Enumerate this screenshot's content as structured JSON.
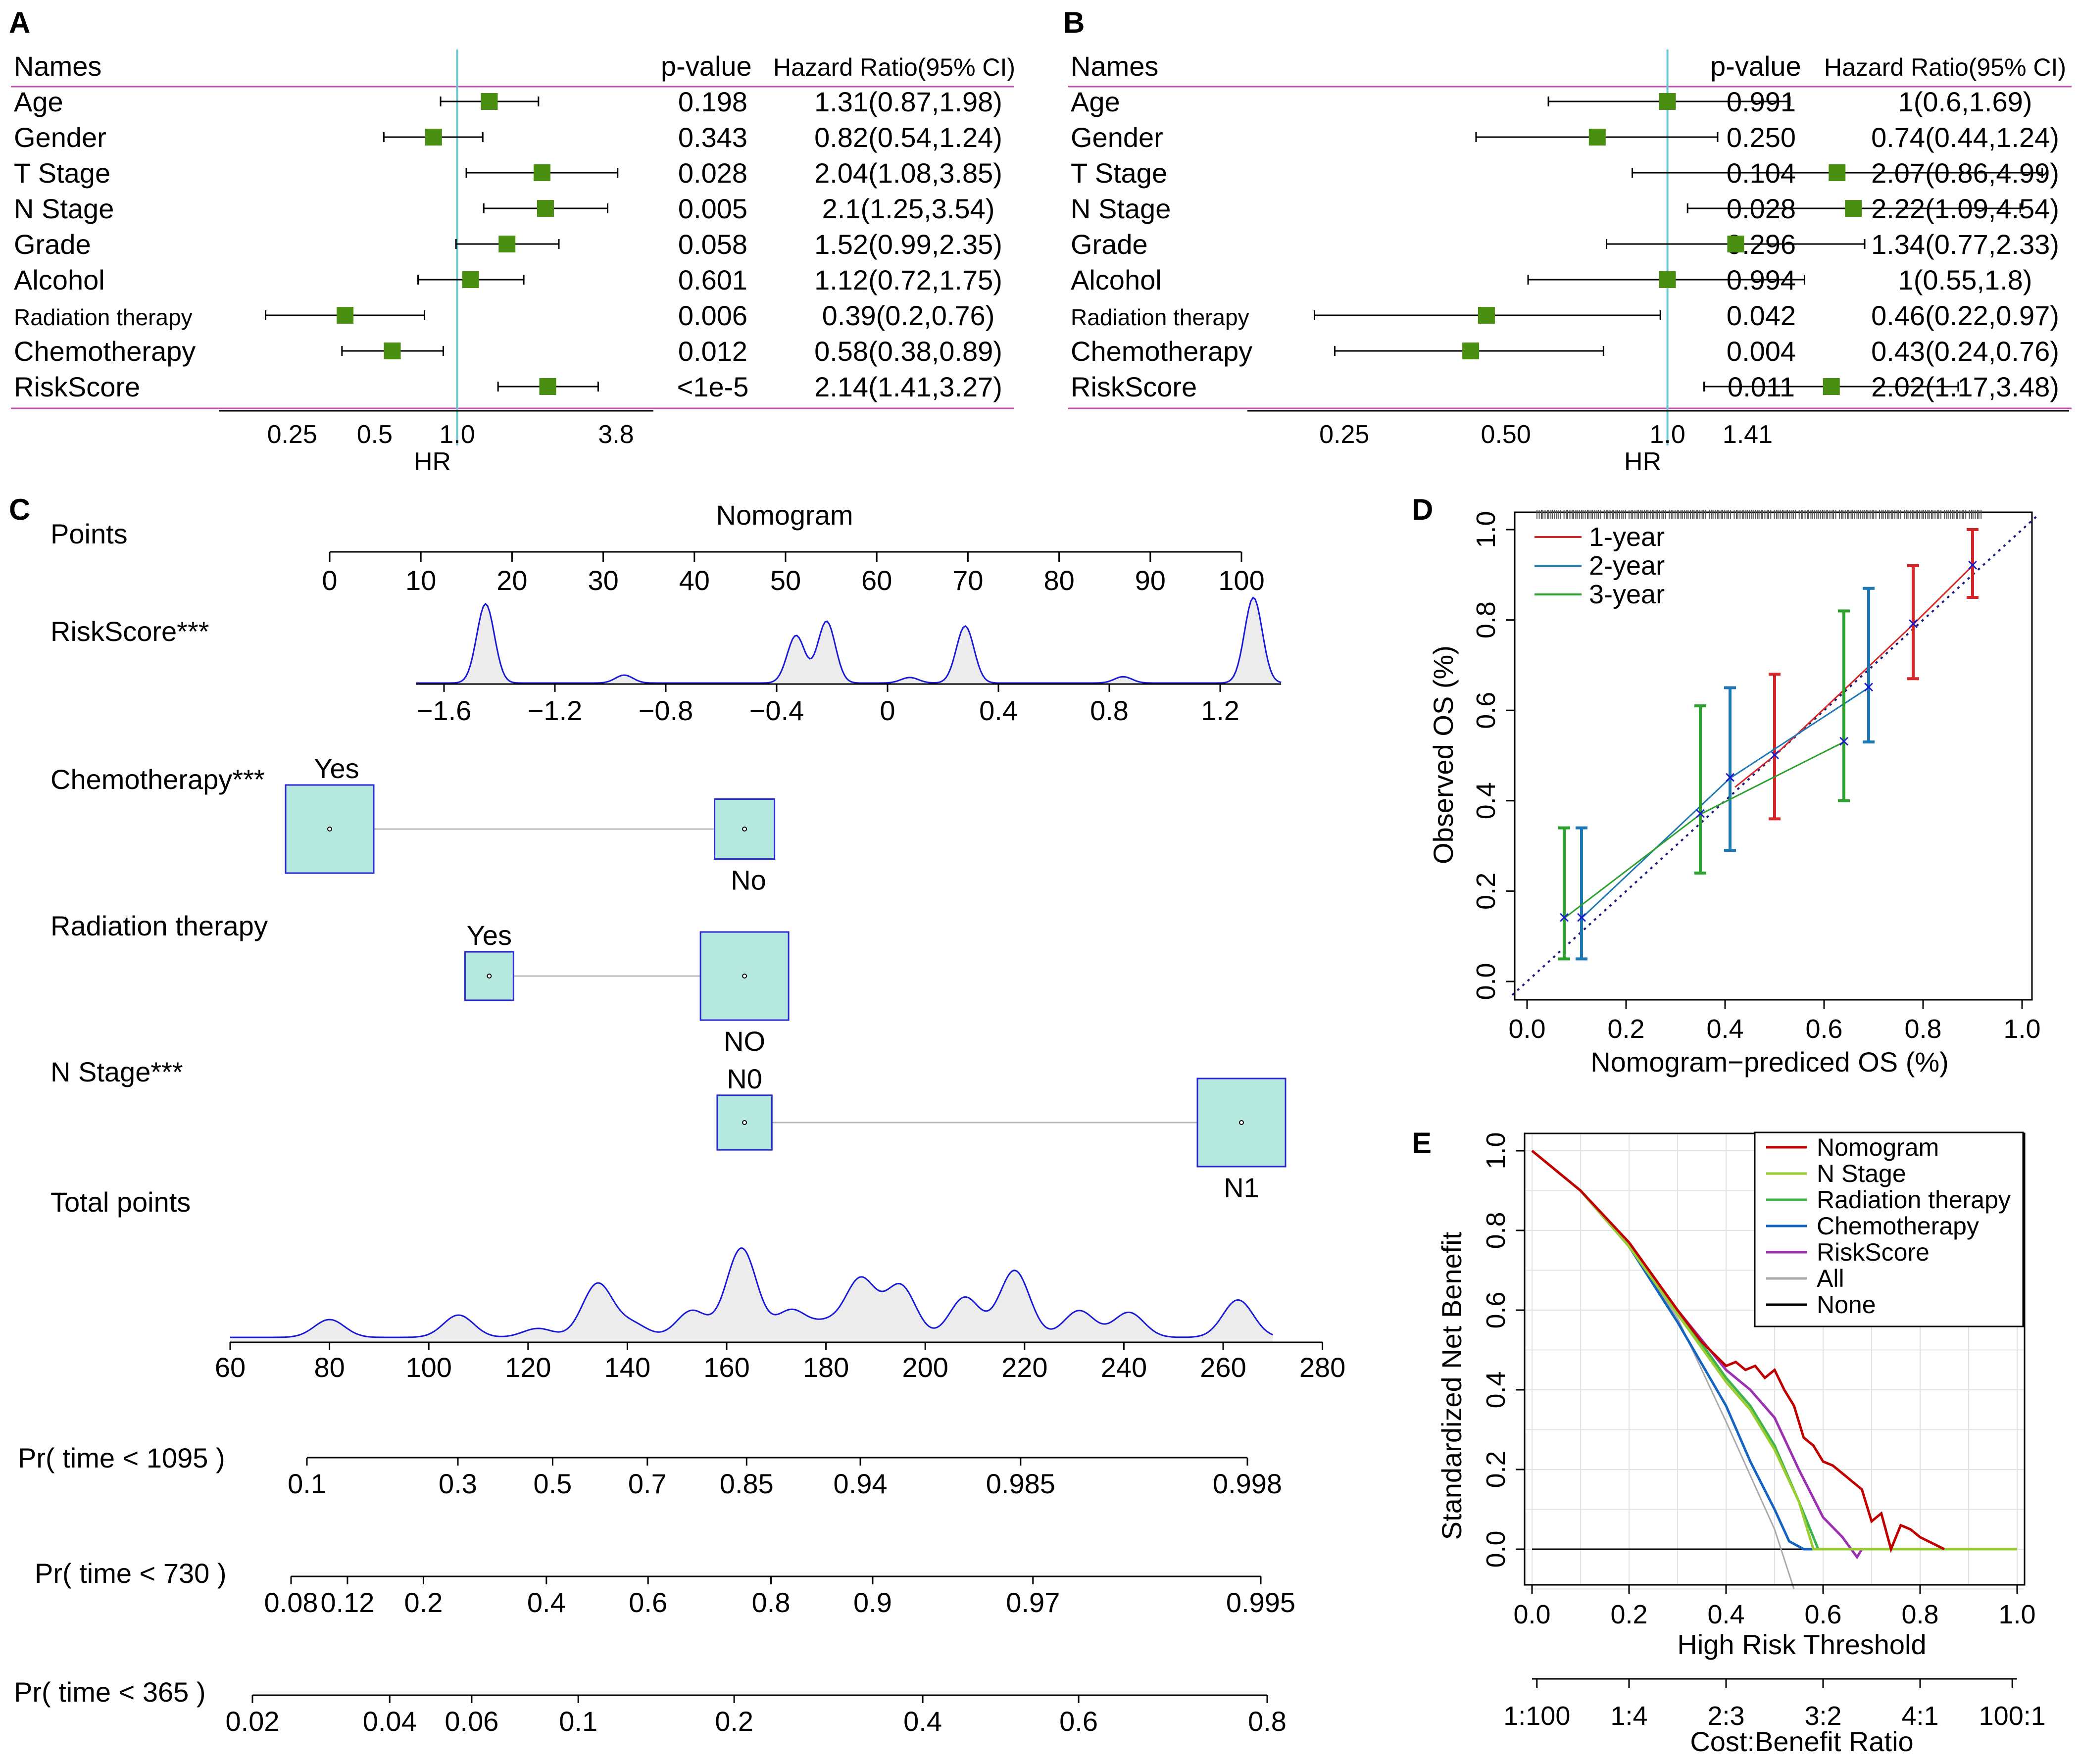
{
  "chart_data": [
    {
      "panel": "A",
      "type": "forest",
      "headers": {
        "names": "Names",
        "p": "p-value",
        "hr": "Hazard Ratio(95% CI)"
      },
      "rows": [
        {
          "name": "Age",
          "p": "0.198",
          "hr_text": "1.31(0.87,1.98)",
          "hr": 1.31,
          "lo": 0.87,
          "hi": 1.98
        },
        {
          "name": "Gender",
          "p": "0.343",
          "hr_text": "0.82(0.54,1.24)",
          "hr": 0.82,
          "lo": 0.54,
          "hi": 1.24
        },
        {
          "name": "T Stage",
          "p": "0.028",
          "hr_text": "2.04(1.08,3.85)",
          "hr": 2.04,
          "lo": 1.08,
          "hi": 3.85
        },
        {
          "name": "N Stage",
          "p": "0.005",
          "hr_text": "2.1(1.25,3.54)",
          "hr": 2.1,
          "lo": 1.25,
          "hi": 3.54
        },
        {
          "name": "Grade",
          "p": "0.058",
          "hr_text": "1.52(0.99,2.35)",
          "hr": 1.52,
          "lo": 0.99,
          "hi": 2.35
        },
        {
          "name": "Alcohol",
          "p": "0.601",
          "hr_text": "1.12(0.72,1.75)",
          "hr": 1.12,
          "lo": 0.72,
          "hi": 1.75
        },
        {
          "name": "Radiation therapy",
          "p": "0.006",
          "hr_text": "0.39(0.2,0.76)",
          "hr": 0.39,
          "lo": 0.2,
          "hi": 0.76
        },
        {
          "name": "Chemotherapy",
          "p": "0.012",
          "hr_text": "0.58(0.38,0.89)",
          "hr": 0.58,
          "lo": 0.38,
          "hi": 0.89
        },
        {
          "name": "RiskScore",
          "p": "<1e-5",
          "hr_text": "2.14(1.41,3.27)",
          "hr": 2.14,
          "lo": 1.41,
          "hi": 3.27
        }
      ],
      "xticks": [
        {
          "label": "0.25",
          "v": 0.25
        },
        {
          "label": "0.5",
          "v": 0.5
        },
        {
          "label": "1.0",
          "v": 1.0
        },
        {
          "label": "3.8",
          "v": 3.8
        }
      ],
      "xrange": [
        0.135,
        5.2
      ],
      "xlabel": "HR"
    },
    {
      "panel": "B",
      "type": "forest",
      "headers": {
        "names": "Names",
        "p": "p-value",
        "hr": "Hazard Ratio(95% CI)"
      },
      "rows": [
        {
          "name": "Age",
          "p": "0.991",
          "hr_text": "1(0.6,1.69)",
          "hr": 1.0,
          "lo": 0.6,
          "hi": 1.69
        },
        {
          "name": "Gender",
          "p": "0.250",
          "hr_text": "0.74(0.44,1.24)",
          "hr": 0.74,
          "lo": 0.44,
          "hi": 1.24
        },
        {
          "name": "T Stage",
          "p": "0.104",
          "hr_text": "2.07(0.86,4.99)",
          "hr": 2.07,
          "lo": 0.86,
          "hi": 4.99
        },
        {
          "name": "N Stage",
          "p": "0.028",
          "hr_text": "2.22(1.09,4.54)",
          "hr": 2.22,
          "lo": 1.09,
          "hi": 4.54
        },
        {
          "name": "Grade",
          "p": "0.296",
          "hr_text": "1.34(0.77,2.33)",
          "hr": 1.34,
          "lo": 0.77,
          "hi": 2.33
        },
        {
          "name": "Alcohol",
          "p": "0.994",
          "hr_text": "1(0.55,1.8)",
          "hr": 1.0,
          "lo": 0.55,
          "hi": 1.8
        },
        {
          "name": "Radiation therapy",
          "p": "0.042",
          "hr_text": "0.46(0.22,0.97)",
          "hr": 0.46,
          "lo": 0.22,
          "hi": 0.97
        },
        {
          "name": "Chemotherapy",
          "p": "0.004",
          "hr_text": "0.43(0.24,0.76)",
          "hr": 0.43,
          "lo": 0.24,
          "hi": 0.76
        },
        {
          "name": "RiskScore",
          "p": "0.011",
          "hr_text": "2.02(1.17,3.48)",
          "hr": 2.02,
          "lo": 1.17,
          "hi": 3.48
        }
      ],
      "xticks": [
        {
          "label": "0.25",
          "v": 0.25
        },
        {
          "label": "0.50",
          "v": 0.5
        },
        {
          "label": "1.0",
          "v": 1.0
        },
        {
          "label": "1.41",
          "v": 1.41
        }
      ],
      "xrange": [
        0.165,
        5.6
      ],
      "xlabel": "HR"
    },
    {
      "panel": "C",
      "type": "nomogram",
      "title": "Nomogram",
      "points_axis": {
        "label": "Points",
        "ticks": [
          "0",
          "10",
          "20",
          "30",
          "40",
          "50",
          "60",
          "70",
          "80",
          "90",
          "100"
        ]
      },
      "riskscore": {
        "label": "RiskScore***",
        "ticks": [
          "−1.6",
          "−1.2",
          "−0.8",
          "−0.4",
          "0",
          "0.4",
          "0.8",
          "1.2"
        ],
        "range": [
          -1.7,
          1.42
        ],
        "peaks": [
          [
            -1.45,
            1.0
          ],
          [
            -0.95,
            0.1
          ],
          [
            -0.33,
            0.6
          ],
          [
            -0.22,
            0.78
          ],
          [
            0.08,
            0.07
          ],
          [
            0.28,
            0.72
          ],
          [
            0.85,
            0.08
          ],
          [
            1.32,
            1.08
          ]
        ]
      },
      "chemotherapy": {
        "label": "Chemotherapy***",
        "items": [
          {
            "level": "Yes",
            "points": 0
          },
          {
            "level": "No",
            "points": 45.5
          }
        ],
        "sizes": [
          1.0,
          0.68
        ]
      },
      "radiation": {
        "label": "Radiation therapy",
        "items": [
          {
            "level": "Yes",
            "points": 17.5
          },
          {
            "level": "NO",
            "points": 45.5
          }
        ],
        "sizes": [
          0.55,
          1.0
        ]
      },
      "nstage": {
        "label": "N Stage***",
        "items": [
          {
            "level": "N0",
            "points": 45.5
          },
          {
            "level": "N1",
            "points": 100
          }
        ],
        "sizes": [
          0.62,
          1.0
        ]
      },
      "total_points": {
        "label": "Total points",
        "ticks": [
          "60",
          "80",
          "100",
          "120",
          "140",
          "160",
          "180",
          "200",
          "220",
          "240",
          "260",
          "280"
        ],
        "range": [
          60,
          280
        ],
        "peaks": [
          [
            80,
            0.2
          ],
          [
            106,
            0.25
          ],
          [
            122,
            0.1
          ],
          [
            134,
            0.6
          ],
          [
            141,
            0.15
          ],
          [
            153,
            0.3
          ],
          [
            163,
            1.0
          ],
          [
            173,
            0.3
          ],
          [
            180,
            0.15
          ],
          [
            187,
            0.65
          ],
          [
            195,
            0.58
          ],
          [
            208,
            0.45
          ],
          [
            218,
            0.75
          ],
          [
            231,
            0.3
          ],
          [
            241,
            0.28
          ],
          [
            263,
            0.42
          ]
        ]
      },
      "prob_axes": [
        {
          "label": "Pr( time < 1095 )",
          "ticks": [
            "0.1",
            "0.3",
            "0.5",
            "0.7",
            "0.85",
            "0.94",
            "0.985",
            "0.998"
          ],
          "values": [
            0.1,
            0.3,
            0.5,
            0.7,
            0.85,
            0.94,
            0.985,
            0.998
          ]
        },
        {
          "label": "Pr( time < 730 )",
          "ticks": [
            "0.08",
            "0.12",
            "0.2",
            "0.4",
            "0.6",
            "0.8",
            "0.9",
            "0.97",
            "0.995"
          ],
          "values": [
            0.08,
            0.12,
            0.2,
            0.4,
            0.6,
            0.8,
            0.9,
            0.97,
            0.995
          ]
        },
        {
          "label": "Pr( time < 365 )",
          "ticks": [
            "0.02",
            "0.04",
            "0.06",
            "0.1",
            "0.2",
            "0.4",
            "0.6",
            "0.8"
          ],
          "values": [
            0.02,
            0.04,
            0.06,
            0.1,
            0.2,
            0.4,
            0.6,
            0.8
          ]
        }
      ]
    },
    {
      "panel": "D",
      "type": "calibration",
      "xlabel": "Nomogram−prediced OS (%)",
      "ylabel": "Observed OS (%)",
      "xlim": [
        0,
        1
      ],
      "ylim": [
        0,
        1
      ],
      "ticks": [
        "0.0",
        "0.2",
        "0.4",
        "0.6",
        "0.8",
        "1.0"
      ],
      "series": [
        {
          "name": "1-year",
          "color": "#d62728",
          "x": [
            0.5,
            0.78,
            0.9
          ],
          "y": [
            0.5,
            0.79,
            0.92
          ],
          "lo": [
            0.36,
            0.67,
            0.85
          ],
          "hi": [
            0.68,
            0.92,
            1.0
          ]
        },
        {
          "name": "2-year",
          "color": "#1f77b4",
          "x": [
            0.11,
            0.41,
            0.69
          ],
          "y": [
            0.14,
            0.45,
            0.65
          ],
          "lo": [
            0.05,
            0.29,
            0.53
          ],
          "hi": [
            0.34,
            0.65,
            0.87
          ]
        },
        {
          "name": "3-year",
          "color": "#2ca02c",
          "x": [
            0.075,
            0.35,
            0.64
          ],
          "y": [
            0.14,
            0.37,
            0.53
          ],
          "lo": [
            0.05,
            0.24,
            0.4
          ],
          "hi": [
            0.34,
            0.61,
            0.82
          ]
        }
      ]
    },
    {
      "panel": "E",
      "type": "line",
      "xlabel": "High Risk Threshold",
      "ylabel": "Standardized Net Benefit",
      "x2label": "Cost:Benefit Ratio",
      "xlim": [
        0,
        1
      ],
      "ylim": [
        -0.05,
        1.05
      ],
      "xticks": [
        "0.0",
        "0.2",
        "0.4",
        "0.6",
        "0.8",
        "1.0"
      ],
      "yticks": [
        "0.0",
        "0.2",
        "0.4",
        "0.6",
        "0.8",
        "1.0"
      ],
      "x2ticks": [
        {
          "label": "1:100",
          "v": 0.01
        },
        {
          "label": "1:4",
          "v": 0.2
        },
        {
          "label": "2:3",
          "v": 0.4
        },
        {
          "label": "3:2",
          "v": 0.6
        },
        {
          "label": "4:1",
          "v": 0.8
        },
        {
          "label": "100:1",
          "v": 0.99
        }
      ],
      "series": [
        {
          "name": "Nomogram",
          "color": "#c00000",
          "x": [
            0,
            0.1,
            0.2,
            0.3,
            0.35,
            0.4,
            0.42,
            0.44,
            0.46,
            0.48,
            0.5,
            0.52,
            0.54,
            0.56,
            0.58,
            0.6,
            0.62,
            0.65,
            0.68,
            0.7,
            0.72,
            0.74,
            0.76,
            0.78,
            0.8,
            0.85
          ],
          "y": [
            1,
            0.9,
            0.77,
            0.6,
            0.52,
            0.46,
            0.47,
            0.45,
            0.46,
            0.43,
            0.45,
            0.4,
            0.36,
            0.28,
            0.26,
            0.22,
            0.21,
            0.18,
            0.15,
            0.07,
            0.09,
            0,
            0.06,
            0.05,
            0.03,
            0
          ]
        },
        {
          "name": "N Stage",
          "color": "#9acd32",
          "x": [
            0,
            0.1,
            0.2,
            0.3,
            0.4,
            0.45,
            0.5,
            0.55,
            0.58,
            1.0
          ],
          "y": [
            1,
            0.9,
            0.76,
            0.59,
            0.42,
            0.35,
            0.25,
            0.12,
            0,
            0
          ]
        },
        {
          "name": "Radiation therapy",
          "color": "#3cb44b",
          "x": [
            0,
            0.1,
            0.2,
            0.3,
            0.4,
            0.45,
            0.5,
            0.55,
            0.59,
            1.0
          ],
          "y": [
            1,
            0.9,
            0.76,
            0.6,
            0.43,
            0.36,
            0.26,
            0.12,
            0,
            0
          ]
        },
        {
          "name": "Chemotherapy",
          "color": "#1565c0",
          "x": [
            0,
            0.1,
            0.2,
            0.3,
            0.4,
            0.45,
            0.5,
            0.53,
            0.56,
            1.0
          ],
          "y": [
            1,
            0.9,
            0.76,
            0.57,
            0.36,
            0.22,
            0.1,
            0.02,
            0,
            0
          ]
        },
        {
          "name": "RiskScore",
          "color": "#9b30b0",
          "x": [
            0,
            0.1,
            0.2,
            0.3,
            0.4,
            0.45,
            0.5,
            0.55,
            0.6,
            0.64,
            0.67,
            0.68,
            1.0
          ],
          "y": [
            1,
            0.9,
            0.76,
            0.6,
            0.45,
            0.4,
            0.33,
            0.2,
            0.08,
            0.03,
            -0.02,
            0,
            0
          ]
        },
        {
          "name": "All",
          "color": "#aaaaaa",
          "x": [
            0,
            0.1,
            0.2,
            0.3,
            0.4,
            0.5,
            0.54
          ],
          "y": [
            1,
            0.9,
            0.76,
            0.58,
            0.32,
            0.05,
            -0.1
          ]
        },
        {
          "name": "None",
          "color": "#000000",
          "x": [
            0,
            1
          ],
          "y": [
            0,
            0
          ]
        }
      ]
    }
  ],
  "labels": {
    "A": "A",
    "B": "B",
    "C": "C",
    "D": "D",
    "E": "E"
  }
}
